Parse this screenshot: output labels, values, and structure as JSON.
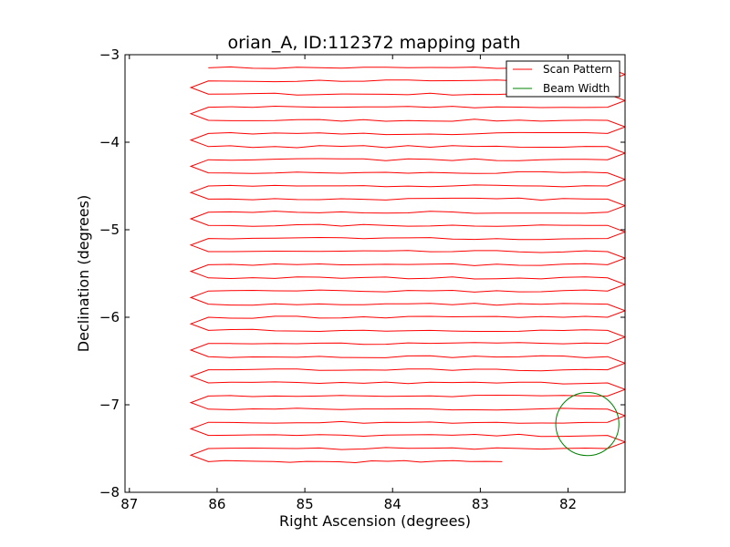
{
  "chart_data": {
    "type": "line",
    "title": "orian_A, ID:112372 mapping path",
    "xlabel": "Right Ascension (degrees)",
    "ylabel": "Declination (degrees)",
    "xlim": [
      87.05,
      81.35
    ],
    "ylim": [
      -8,
      -3
    ],
    "x_inverted": true,
    "xticks": [
      87,
      86,
      85,
      84,
      83,
      82
    ],
    "xtick_labels": [
      "87",
      "86",
      "85",
      "84",
      "83",
      "82"
    ],
    "yticks": [
      -3,
      -4,
      -5,
      -6,
      -7,
      -8
    ],
    "ytick_labels": [
      "−3",
      "−4",
      "−5",
      "−6",
      "−7",
      "−8"
    ],
    "grid": false,
    "legend_position": "top-right",
    "series": [
      {
        "name": "Scan Pattern",
        "color": "#ff0000",
        "kind": "line",
        "scan": {
          "row_start_dec": -3.15,
          "row_step_dec": -0.15,
          "row_count": 31,
          "ra_left": 86.1,
          "ra_right": 81.55,
          "ra_left_turn": 86.3,
          "ra_right_turn": 81.35,
          "end_ra": 82.75
        }
      },
      {
        "name": "Beam Width",
        "color": "#008000",
        "kind": "circle",
        "center": [
          81.78,
          -7.22
        ],
        "radius_dec": 0.36
      }
    ]
  }
}
